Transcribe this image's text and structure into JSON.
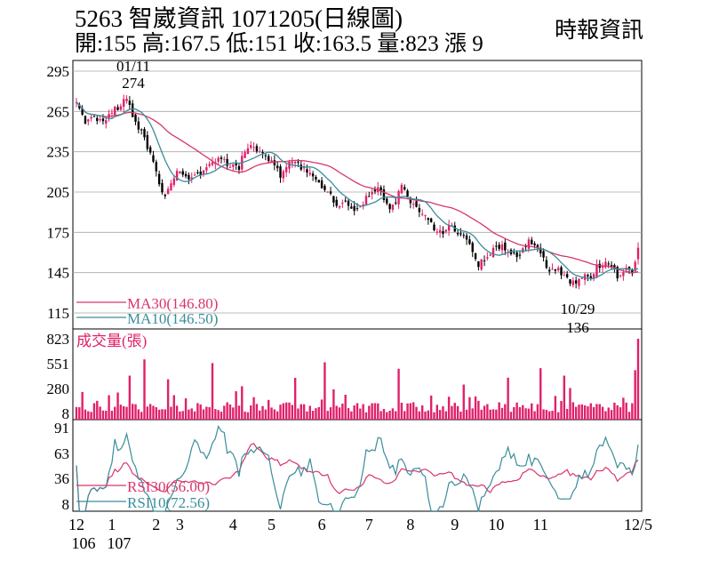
{
  "header": {
    "title": "5263  智崴資訊 1071205(日線圖)",
    "quote_line": "開:155 高:167.5 低:151 收:163.5 量:823 漲 9",
    "source": "時報資訊"
  },
  "colors": {
    "up": "#e0206a",
    "down": "#000000",
    "ma30": "#d8356b",
    "ma10": "#3a8d9a",
    "volume": "#e0206a",
    "grid": "#a8a8a8"
  },
  "chart_data": [
    {
      "type": "candlestick",
      "title": "5263 智崴資訊 1071205(日線圖)",
      "y_ticks": [
        "295",
        "265",
        "235",
        "205",
        "175",
        "145",
        "115"
      ],
      "ylim": [
        115,
        295
      ],
      "annotations": [
        {
          "date": "01/11",
          "value": "274",
          "kind": "high"
        },
        {
          "date": "10/29",
          "value": "136",
          "kind": "low"
        }
      ],
      "legend": [
        {
          "name": "MA30",
          "label": "MA30(146.80)",
          "color": "#d8356b"
        },
        {
          "name": "MA10",
          "label": "MA10(146.50)",
          "color": "#3a8d9a"
        }
      ],
      "last": {
        "open": 155,
        "high": 167.5,
        "low": 151,
        "close": 163.5
      },
      "price_path": [
        [
          0,
          272
        ],
        [
          3,
          258
        ],
        [
          6,
          262
        ],
        [
          9,
          256
        ],
        [
          12,
          265
        ],
        [
          15,
          270
        ],
        [
          17,
          274
        ],
        [
          19,
          262
        ],
        [
          22,
          250
        ],
        [
          25,
          232
        ],
        [
          28,
          213
        ],
        [
          30,
          200
        ],
        [
          32,
          212
        ],
        [
          35,
          222
        ],
        [
          38,
          216
        ],
        [
          42,
          220
        ],
        [
          45,
          225
        ],
        [
          48,
          230
        ],
        [
          52,
          225
        ],
        [
          55,
          222
        ],
        [
          57,
          237
        ],
        [
          60,
          238
        ],
        [
          63,
          232
        ],
        [
          65,
          230
        ],
        [
          67,
          226
        ],
        [
          69,
          218
        ],
        [
          71,
          226
        ],
        [
          74,
          228
        ],
        [
          77,
          222
        ],
        [
          80,
          219
        ],
        [
          83,
          210
        ],
        [
          86,
          203
        ],
        [
          88,
          196
        ],
        [
          91,
          197
        ],
        [
          94,
          193
        ],
        [
          97,
          198
        ],
        [
          100,
          205
        ],
        [
          102,
          210
        ],
        [
          104,
          200
        ],
        [
          106,
          193
        ],
        [
          108,
          198
        ],
        [
          110,
          212
        ],
        [
          112,
          200
        ],
        [
          115,
          192
        ],
        [
          118,
          188
        ],
        [
          121,
          178
        ],
        [
          124,
          176
        ],
        [
          127,
          180
        ],
        [
          130,
          174
        ],
        [
          133,
          165
        ],
        [
          136,
          150
        ],
        [
          138,
          155
        ],
        [
          141,
          162
        ],
        [
          144,
          165
        ],
        [
          147,
          160
        ],
        [
          150,
          156
        ],
        [
          153,
          170
        ],
        [
          156,
          165
        ],
        [
          158,
          155
        ],
        [
          160,
          146
        ],
        [
          162,
          148
        ],
        [
          164,
          145
        ],
        [
          166,
          140
        ],
        [
          169,
          136
        ],
        [
          171,
          143
        ],
        [
          174,
          142
        ],
        [
          176,
          150
        ],
        [
          178,
          152
        ],
        [
          181,
          148
        ],
        [
          183,
          143
        ],
        [
          186,
          148
        ],
        [
          188,
          146
        ],
        [
          190,
          163.5
        ]
      ]
    },
    {
      "type": "bar",
      "title": "成交量(張)",
      "y_ticks": [
        "823",
        "551",
        "280",
        "8"
      ],
      "ylim": [
        8,
        823
      ],
      "last_value": 823
    },
    {
      "type": "line",
      "y_ticks": [
        "91",
        "63",
        "36",
        "8"
      ],
      "ylim": [
        8,
        91
      ],
      "series": [
        {
          "name": "RSI30",
          "label": "RSI30(56.00)",
          "color": "#d8356b",
          "last": 56.0
        },
        {
          "name": "RSI10",
          "label": "RSI10(72.56)",
          "color": "#3a8d9a",
          "last": 72.56
        }
      ]
    }
  ],
  "x_axis": {
    "month_labels": [
      {
        "label": "12",
        "idx": 0
      },
      {
        "label": "1",
        "idx": 12
      },
      {
        "label": "2",
        "idx": 27
      },
      {
        "label": "3",
        "idx": 35
      },
      {
        "label": "4",
        "idx": 53
      },
      {
        "label": "5",
        "idx": 66
      },
      {
        "label": "6",
        "idx": 83
      },
      {
        "label": "7",
        "idx": 99
      },
      {
        "label": "8",
        "idx": 113
      },
      {
        "label": "9",
        "idx": 128
      },
      {
        "label": "10",
        "idx": 142
      },
      {
        "label": "11",
        "idx": 157
      },
      {
        "label": "12/5",
        "idx": 172
      }
    ],
    "year_labels": [
      {
        "label": "106",
        "idx": 0
      },
      {
        "label": "107",
        "idx": 12
      }
    ]
  }
}
